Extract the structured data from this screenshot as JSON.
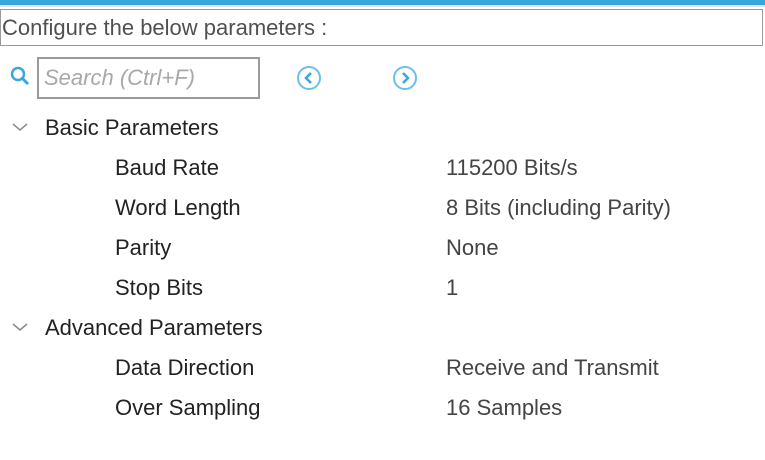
{
  "header": {
    "title": "Configure the below parameters :"
  },
  "search": {
    "placeholder": "Search (Ctrl+F)"
  },
  "colors": {
    "accent": "#39a7db"
  },
  "groups": [
    {
      "title": "Basic Parameters",
      "params": [
        {
          "label": "Baud Rate",
          "value": "115200 Bits/s"
        },
        {
          "label": "Word Length",
          "value": "8 Bits (including Parity)"
        },
        {
          "label": "Parity",
          "value": "None"
        },
        {
          "label": "Stop Bits",
          "value": "1"
        }
      ]
    },
    {
      "title": "Advanced Parameters",
      "params": [
        {
          "label": "Data Direction",
          "value": "Receive and Transmit"
        },
        {
          "label": "Over Sampling",
          "value": "16 Samples"
        }
      ]
    }
  ]
}
